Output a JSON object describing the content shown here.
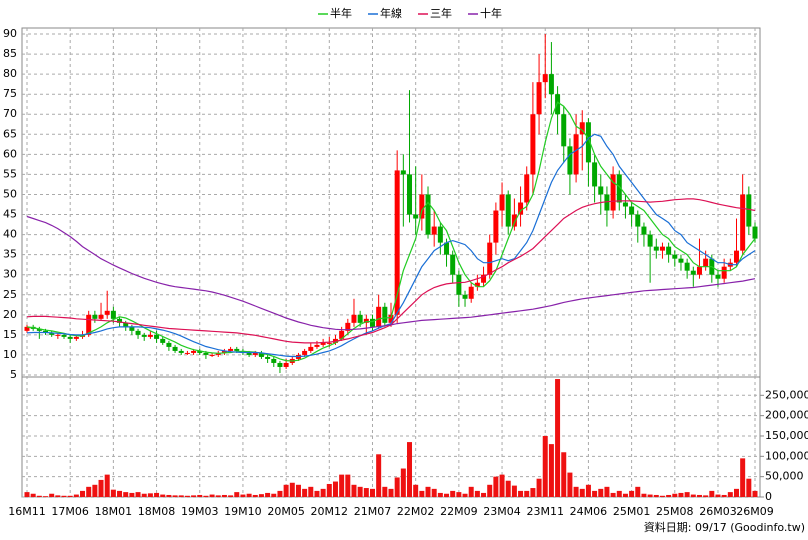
{
  "chart_data": {
    "type": "candlestick",
    "categories": [
      "16M11",
      null,
      null,
      null,
      null,
      null,
      null,
      "17M06",
      null,
      null,
      null,
      null,
      null,
      null,
      "18M01",
      null,
      null,
      null,
      null,
      null,
      null,
      "18M08",
      null,
      null,
      null,
      null,
      null,
      null,
      "19M03",
      null,
      null,
      null,
      null,
      null,
      null,
      "19M10",
      null,
      null,
      null,
      null,
      null,
      null,
      "20M05",
      null,
      null,
      null,
      null,
      null,
      null,
      "20M12",
      null,
      null,
      null,
      null,
      null,
      null,
      "21M07",
      null,
      null,
      null,
      null,
      null,
      null,
      "22M02",
      null,
      null,
      null,
      null,
      null,
      null,
      "22M09",
      null,
      null,
      null,
      null,
      null,
      null,
      "23M04",
      null,
      null,
      null,
      null,
      null,
      null,
      "23M11",
      null,
      null,
      null,
      null,
      null,
      null,
      "24M06",
      null,
      null,
      null,
      null,
      null,
      null,
      "25M01",
      null,
      null,
      null,
      null,
      null,
      null,
      "25M08",
      null,
      null,
      null,
      null,
      null,
      null,
      "26M03",
      null,
      null,
      null,
      null,
      null,
      "26M09"
    ],
    "open": [
      16,
      17,
      16.5,
      16,
      15.5,
      15,
      15,
      14.5,
      14,
      14.5,
      15,
      20,
      19,
      20,
      21,
      19,
      18,
      17,
      16,
      15,
      14.5,
      15,
      14,
      13,
      12,
      11,
      10.5,
      10.5,
      11,
      10.5,
      10,
      10,
      10.5,
      11,
      11.5,
      11,
      10.5,
      10,
      10.5,
      9.5,
      9,
      8,
      7,
      8,
      9,
      10,
      11,
      12,
      12.5,
      13,
      13,
      14,
      16,
      18,
      20,
      18,
      19,
      17,
      22,
      18,
      20,
      56,
      55,
      45,
      44,
      50,
      40,
      42,
      38,
      35,
      30,
      25,
      24,
      27,
      28,
      30,
      38,
      46,
      50,
      42,
      45,
      48,
      55,
      70,
      78,
      80,
      75,
      70,
      62,
      55,
      65,
      68,
      58,
      52,
      50,
      46,
      55,
      48,
      47,
      45,
      42,
      40,
      37,
      36,
      37,
      35,
      34,
      33,
      31,
      30,
      32,
      34,
      30,
      29,
      32,
      33,
      36,
      50,
      42
    ],
    "high": [
      17.5,
      17.5,
      17,
      16.5,
      16,
      15.5,
      15.5,
      15,
      15,
      16,
      21,
      21,
      23,
      26,
      22,
      19.5,
      18.5,
      17.5,
      16.5,
      15.5,
      16,
      16,
      14.5,
      13.5,
      12.5,
      11.5,
      11,
      11.5,
      11.5,
      11,
      10.5,
      11,
      11.5,
      12,
      12,
      11.5,
      11,
      11,
      11,
      10,
      9.5,
      8.5,
      9,
      9.5,
      10.5,
      11.5,
      13,
      13.5,
      14,
      14.5,
      15,
      17,
      19,
      24,
      21,
      20,
      20,
      25,
      23,
      23,
      61,
      60,
      76,
      57,
      55,
      52,
      46,
      43,
      39,
      36,
      31,
      26,
      28,
      30,
      32,
      40,
      48,
      53,
      51,
      49,
      52,
      57,
      78,
      85,
      90,
      88,
      77,
      72,
      64,
      70,
      71,
      69,
      60,
      55,
      52,
      57,
      56,
      50,
      48,
      46,
      43,
      41,
      39,
      38,
      38,
      36,
      35,
      34,
      32,
      39,
      36,
      35,
      31,
      34,
      34,
      44,
      55,
      52,
      43
    ],
    "low": [
      15.5,
      16,
      14,
      15,
      14.5,
      14,
      14,
      13,
      13.5,
      14,
      14.5,
      18,
      18.5,
      19,
      18,
      17,
      16,
      15,
      14,
      13.5,
      14,
      13,
      12.5,
      11,
      10.5,
      10,
      10,
      10,
      10,
      9,
      9.5,
      9.5,
      10,
      10.5,
      10.5,
      10,
      9.5,
      9.5,
      9,
      8,
      7,
      5.5,
      6.5,
      7.5,
      8.5,
      9.5,
      10.5,
      11.5,
      12,
      12,
      12.5,
      13.5,
      15,
      17,
      17,
      15,
      16,
      16.5,
      17,
      17,
      18,
      42,
      43,
      40,
      41,
      39,
      37,
      35,
      32,
      28,
      22,
      22,
      23,
      26,
      27,
      29,
      35,
      42,
      40,
      41,
      42,
      46,
      50,
      65,
      74,
      70,
      65,
      58,
      50,
      53,
      56,
      52,
      48,
      45,
      42,
      44,
      46,
      44,
      42,
      38,
      37,
      28,
      34,
      34,
      33,
      32,
      31,
      29,
      27,
      29,
      31,
      28,
      27,
      28,
      31,
      32,
      35,
      40,
      38
    ],
    "close": [
      17,
      16.5,
      16,
      15.5,
      15,
      15,
      14.5,
      14,
      14.5,
      15,
      20,
      19,
      20,
      21,
      19,
      18,
      17,
      16,
      15,
      14.5,
      15,
      14,
      13,
      12,
      11,
      10.5,
      10.5,
      11,
      10.5,
      10,
      10,
      10.5,
      11,
      11.5,
      11,
      10.5,
      10,
      10.5,
      9.5,
      9,
      8,
      7,
      8,
      9,
      10,
      11,
      12,
      12.5,
      13,
      13,
      14,
      16,
      18,
      20,
      18,
      19,
      17,
      22,
      18,
      20,
      56,
      55,
      45,
      44,
      50,
      40,
      42,
      38,
      35,
      30,
      25,
      24,
      27,
      28,
      30,
      38,
      46,
      50,
      42,
      45,
      48,
      55,
      70,
      78,
      80,
      75,
      70,
      62,
      55,
      65,
      68,
      58,
      52,
      50,
      46,
      55,
      48,
      47,
      45,
      42,
      40,
      37,
      36,
      37,
      35,
      34,
      33,
      31,
      30,
      32,
      34,
      30,
      29,
      32,
      33,
      36,
      50,
      42,
      39
    ],
    "up_color": "#ff0000",
    "down_color": "#00a800",
    "ylim": [
      4.5,
      91.5
    ],
    "yticks": [
      5,
      10,
      15,
      20,
      25,
      30,
      35,
      40,
      45,
      50,
      55,
      60,
      65,
      70,
      75,
      80,
      85,
      90
    ],
    "grid": true,
    "legend_position": "top",
    "series": [
      {
        "name": "半年",
        "color": "#22cc22",
        "values": [
          17,
          16.8,
          16.5,
          16.2,
          16,
          15.7,
          15.4,
          15,
          14.8,
          14.7,
          15.5,
          16.2,
          17,
          18,
          18.8,
          19.5,
          19.2,
          18.5,
          17.7,
          16.8,
          16,
          15.3,
          14.6,
          13.9,
          13.2,
          12.4,
          11.8,
          11.3,
          11,
          10.7,
          10.5,
          10.4,
          10.5,
          10.6,
          10.8,
          10.9,
          10.8,
          10.7,
          10.4,
          10.1,
          9.6,
          9,
          8.6,
          8.5,
          8.7,
          9.2,
          10,
          10.9,
          11.7,
          12.3,
          13,
          14,
          15.3,
          16.6,
          17.6,
          18.3,
          18.3,
          19,
          19.2,
          19.3,
          25,
          31,
          35,
          39,
          46,
          48,
          46,
          43,
          41,
          37,
          33,
          30,
          28,
          27,
          27,
          28.5,
          31,
          35,
          39,
          43,
          46,
          47,
          50,
          56,
          63,
          69,
          73,
          72,
          70,
          67,
          66,
          64,
          60,
          57,
          55,
          53,
          52,
          50,
          48,
          47,
          46,
          44,
          42,
          40,
          39,
          37,
          36,
          35,
          33,
          32,
          32,
          32,
          31,
          31,
          31,
          32,
          35,
          37,
          39
        ]
      },
      {
        "name": "年線",
        "color": "#1a6fd6",
        "values": [
          15.5,
          15.6,
          15.6,
          15.6,
          15.5,
          15.4,
          15.3,
          15.1,
          15,
          15,
          15.3,
          15.6,
          16,
          16.5,
          16.8,
          17,
          17,
          17,
          17,
          16.9,
          16.8,
          16.5,
          16.2,
          15.8,
          15.3,
          14.7,
          14,
          13.3,
          12.7,
          12.1,
          11.7,
          11.3,
          11,
          10.8,
          10.7,
          10.6,
          10.6,
          10.6,
          10.5,
          10.3,
          10.1,
          9.9,
          9.7,
          9.6,
          9.6,
          9.7,
          9.9,
          10.2,
          10.6,
          11,
          11.6,
          12.3,
          13.2,
          14,
          14.8,
          15.5,
          16,
          16.7,
          17.3,
          17.8,
          20.5,
          23,
          26,
          29,
          32,
          34,
          36,
          37,
          38,
          38.5,
          38,
          37.5,
          36,
          34,
          33,
          33,
          33.5,
          34,
          33.5,
          34,
          36,
          38,
          41,
          45,
          49,
          53,
          56,
          58,
          60,
          61,
          62,
          64,
          65,
          64.5,
          62,
          60,
          57,
          55,
          53,
          51,
          49,
          47,
          45,
          44,
          43,
          41,
          40,
          38,
          37,
          36,
          35,
          34,
          33,
          33,
          32.5,
          32.5,
          34,
          35,
          36
        ]
      },
      {
        "name": "三年",
        "color": "#dd1155",
        "values": [
          19.5,
          19.6,
          19.6,
          19.6,
          19.5,
          19.4,
          19.3,
          19.2,
          19,
          18.9,
          18.8,
          18.7,
          18.6,
          18.5,
          18.4,
          18.2,
          18,
          17.8,
          17.6,
          17.4,
          17.2,
          17,
          16.8,
          16.6,
          16.5,
          16.4,
          16.3,
          16.2,
          16.1,
          16,
          15.9,
          15.8,
          15.7,
          15.6,
          15.5,
          15.3,
          15.1,
          14.9,
          14.6,
          14.3,
          14,
          13.7,
          13.4,
          13.2,
          13.1,
          13,
          13,
          13,
          13.1,
          13.2,
          13.4,
          13.7,
          14,
          14.4,
          14.8,
          15.2,
          15.6,
          16.2,
          16.8,
          17.5,
          19,
          20.5,
          22,
          23.5,
          25,
          26,
          26.8,
          27.3,
          27.7,
          27.9,
          28,
          28.1,
          28.5,
          29,
          29.5,
          30.3,
          31.2,
          32,
          33,
          33.8,
          34.6,
          35.5,
          36.5,
          38,
          39.5,
          41,
          42.5,
          44,
          45,
          46,
          46.8,
          47.3,
          47.7,
          48,
          48.2,
          48.3,
          48.4,
          48.4,
          48.4,
          48.3,
          48.2,
          48.1,
          48.2,
          48.3,
          48.5,
          48.7,
          48.8,
          48.9,
          48.9,
          48.7,
          48.4,
          48,
          47.6,
          47.3,
          47,
          46.7,
          46.5,
          46.3,
          46
        ]
      },
      {
        "name": "十年",
        "color": "#8822aa",
        "values": [
          44.5,
          44,
          43.5,
          43,
          42.3,
          41.5,
          40.5,
          39.5,
          38.3,
          37,
          36,
          35,
          34,
          33.2,
          32.4,
          31.7,
          31,
          30.3,
          29.7,
          29.1,
          28.6,
          28.1,
          27.7,
          27.3,
          27,
          26.8,
          26.6,
          26.4,
          26.2,
          26,
          25.7,
          25.3,
          24.9,
          24.4,
          23.9,
          23.4,
          22.8,
          22.2,
          21.6,
          21,
          20.4,
          19.8,
          19.2,
          18.7,
          18.2,
          17.8,
          17.4,
          17.1,
          16.8,
          16.6,
          16.4,
          16.3,
          16.3,
          16.4,
          16.5,
          16.7,
          16.9,
          17.1,
          17.3,
          17.5,
          17.8,
          18,
          18.2,
          18.4,
          18.6,
          18.7,
          18.8,
          18.9,
          19,
          19.1,
          19.2,
          19.3,
          19.4,
          19.6,
          19.8,
          20,
          20.2,
          20.4,
          20.6,
          20.8,
          21,
          21.2,
          21.4,
          21.7,
          22,
          22.3,
          22.7,
          23.1,
          23.4,
          23.7,
          24,
          24.2,
          24.4,
          24.6,
          24.8,
          25,
          25.2,
          25.4,
          25.6,
          25.8,
          26,
          26.1,
          26.2,
          26.3,
          26.4,
          26.5,
          26.6,
          26.7,
          26.8,
          27,
          27.2,
          27.4,
          27.6,
          27.8,
          28,
          28.2,
          28.4,
          28.7,
          29
        ]
      }
    ],
    "volume": {
      "color": "#ee1111",
      "values": [
        12000,
        8000,
        3000,
        2000,
        8000,
        4000,
        3000,
        3000,
        6000,
        15000,
        25000,
        30000,
        42000,
        55000,
        18000,
        15000,
        12000,
        10000,
        12000,
        8000,
        9000,
        10000,
        6000,
        5000,
        4000,
        4000,
        3000,
        4000,
        5000,
        3000,
        6000,
        4000,
        5000,
        4000,
        12000,
        6000,
        8000,
        5000,
        7000,
        10000,
        8000,
        15000,
        30000,
        35000,
        30000,
        20000,
        25000,
        15000,
        20000,
        32000,
        38000,
        55000,
        55000,
        30000,
        25000,
        22000,
        20000,
        105000,
        25000,
        20000,
        48000,
        70000,
        135000,
        30000,
        15000,
        25000,
        20000,
        10000,
        8000,
        15000,
        12000,
        8000,
        25000,
        15000,
        10000,
        30000,
        50000,
        55000,
        40000,
        28000,
        15000,
        15000,
        22000,
        45000,
        150000,
        130000,
        290000,
        110000,
        60000,
        25000,
        20000,
        30000,
        15000,
        20000,
        25000,
        10000,
        15000,
        8000,
        15000,
        25000,
        8000,
        6000,
        5000,
        3000,
        5000,
        8000,
        10000,
        12000,
        6000,
        5000,
        4000,
        15000,
        6000,
        5000,
        12000,
        20000,
        95000,
        45000,
        15000
      ],
      "ylim": [
        0,
        295000
      ],
      "yticks": [
        0,
        {
          "value": 50000,
          "label": "50,000"
        },
        {
          "value": 100000,
          "label": "100,000"
        },
        {
          "value": 150000,
          "label": "150,000"
        },
        {
          "value": 200000,
          "label": "200,000"
        },
        {
          "value": 250000,
          "label": "250,000"
        }
      ]
    }
  },
  "footer": "資料日期: 09/17 (Goodinfo.tw)"
}
